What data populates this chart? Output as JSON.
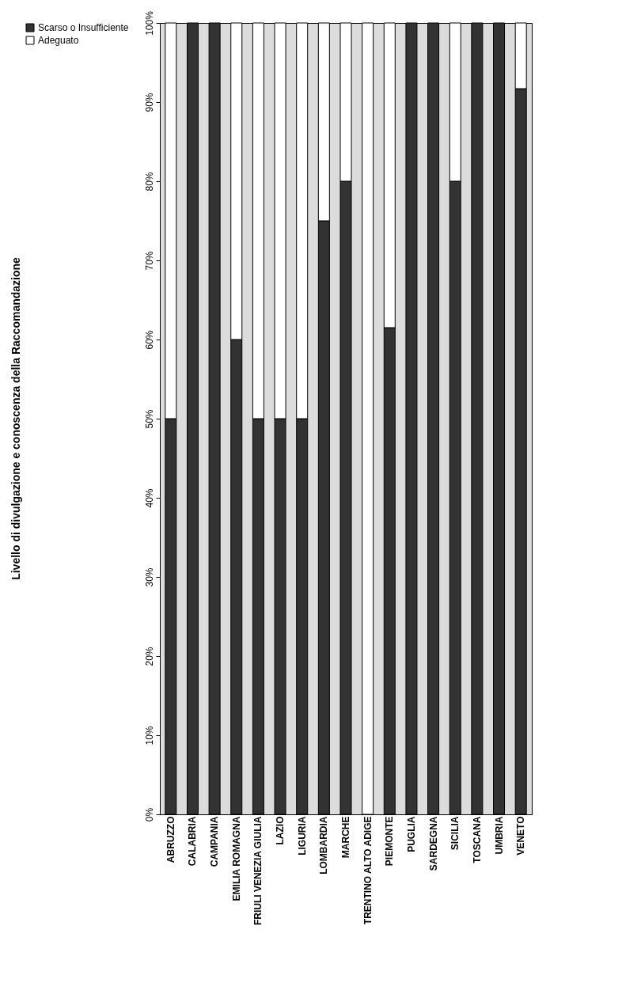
{
  "chart_data": {
    "type": "bar",
    "title": "Livello di divulgazione e conoscenza della Raccomandazione",
    "stacked": true,
    "legend": "left",
    "categories": [
      "ABRUZZO",
      "CALABRIA",
      "CAMPANIA",
      "EMILIA ROMAGNA",
      "FRIULI VENEZIA GIULIA",
      "LAZIO",
      "LIGURIA",
      "LOMBARDIA",
      "MARCHE",
      "TRENTINO ALTO ADIGE",
      "PIEMONTE",
      "PUGLIA",
      "SARDEGNA",
      "SICILIA",
      "TOSCANA",
      "UMBRIA",
      "VENETO"
    ],
    "series": [
      {
        "name": "Scarso o Insufficiente",
        "color": "#333333",
        "values": [
          50,
          100,
          100,
          60,
          50,
          50,
          50,
          75,
          80,
          0,
          61.5,
          100,
          100,
          80,
          100,
          100,
          91.7
        ]
      },
      {
        "name": "Adeguato",
        "color": "#ffffff",
        "values": [
          50,
          0,
          0,
          40,
          50,
          50,
          50,
          25,
          20,
          100,
          38.5,
          0,
          0,
          20,
          0,
          0,
          8.3
        ]
      }
    ],
    "ylim": [
      0,
      100
    ],
    "yticks": [
      {
        "value": 0,
        "label": "0%"
      },
      {
        "value": 10,
        "label": "10%"
      },
      {
        "value": 20,
        "label": "20%"
      },
      {
        "value": 30,
        "label": "30%"
      },
      {
        "value": 40,
        "label": "40%"
      },
      {
        "value": 50,
        "label": "50%"
      },
      {
        "value": 60,
        "label": "60%"
      },
      {
        "value": 70,
        "label": "70%"
      },
      {
        "value": 80,
        "label": "80%"
      },
      {
        "value": 90,
        "label": "90%"
      },
      {
        "value": 100,
        "label": "100%"
      }
    ]
  }
}
